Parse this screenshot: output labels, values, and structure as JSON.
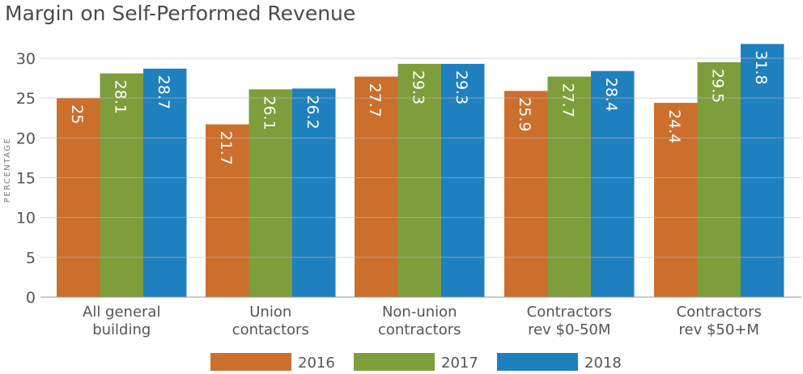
{
  "chart_data": {
    "type": "bar",
    "title": "Margin on Self-Performed Revenue",
    "ylabel": "PERCENTAGE",
    "xlabel": "",
    "ylim": [
      0,
      30
    ],
    "yticks": [
      0,
      5,
      10,
      15,
      20,
      25,
      30
    ],
    "grid": true,
    "legend": "bottom",
    "categories": [
      [
        "All general",
        "building"
      ],
      [
        "Union",
        "contactors"
      ],
      [
        "Non-union",
        "contractors"
      ],
      [
        "Contractors",
        "rev $0-50M"
      ],
      [
        "Contractors",
        "rev $50+M"
      ]
    ],
    "series": [
      {
        "name": "2016",
        "color": "#cc6e2c",
        "values": [
          25,
          21.7,
          27.7,
          25.9,
          24.4
        ]
      },
      {
        "name": "2017",
        "color": "#7e9e3b",
        "values": [
          28.1,
          26.1,
          29.3,
          27.7,
          29.5
        ]
      },
      {
        "name": "2018",
        "color": "#1f80bf",
        "values": [
          28.7,
          26.2,
          29.3,
          28.4,
          31.8
        ]
      }
    ]
  }
}
